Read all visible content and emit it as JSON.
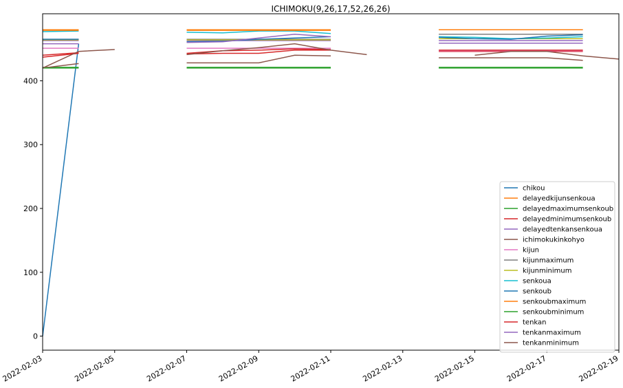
{
  "chart_data": {
    "type": "line",
    "title": "ICHIMOKU(9,26,17,52,26,26)",
    "xlabel": "",
    "ylabel": "",
    "xlim": [
      "2022-02-03",
      "2022-02-19"
    ],
    "ylim": [
      -22,
      505
    ],
    "x_ticks": [
      "2022-02-03",
      "2022-02-05",
      "2022-02-07",
      "2022-02-09",
      "2022-02-11",
      "2022-02-13",
      "2022-02-15",
      "2022-02-17",
      "2022-02-19"
    ],
    "y_ticks": [
      0,
      100,
      200,
      300,
      400
    ],
    "grid": false,
    "legend_position": "lower right",
    "series": [
      {
        "name": "chikou",
        "color": "#1f77b4",
        "points": [
          [
            "2022-02-03",
            0
          ],
          [
            "2022-02-04",
            458
          ]
        ]
      },
      {
        "name": "delayedkijunsenkoua",
        "color": "#ff7f0e",
        "points": [
          [
            "2022-02-03",
            480
          ],
          [
            "2022-02-04",
            480
          ],
          null,
          [
            "2022-02-07",
            480
          ],
          [
            "2022-02-08",
            480
          ],
          [
            "2022-02-09",
            480
          ],
          [
            "2022-02-10",
            480
          ],
          [
            "2022-02-11",
            480
          ],
          null,
          [
            "2022-02-14",
            480
          ],
          [
            "2022-02-15",
            480
          ],
          [
            "2022-02-16",
            480
          ],
          [
            "2022-02-17",
            480
          ],
          [
            "2022-02-18",
            480
          ]
        ]
      },
      {
        "name": "delayedmaximumsenkoub",
        "color": "#2ca02c",
        "points": [
          [
            "2022-02-03",
            421
          ],
          [
            "2022-02-04",
            421
          ],
          null,
          [
            "2022-02-07",
            421
          ],
          [
            "2022-02-08",
            421
          ],
          [
            "2022-02-09",
            421
          ],
          [
            "2022-02-10",
            421
          ],
          [
            "2022-02-11",
            421
          ],
          null,
          [
            "2022-02-14",
            421
          ],
          [
            "2022-02-15",
            421
          ],
          [
            "2022-02-16",
            421
          ],
          [
            "2022-02-17",
            421
          ],
          [
            "2022-02-18",
            421
          ]
        ]
      },
      {
        "name": "delayedminimumsenkoub",
        "color": "#d62728",
        "points": [
          [
            "2022-02-03",
            437
          ],
          [
            "2022-02-04",
            443
          ],
          null,
          [
            "2022-02-07",
            442
          ],
          [
            "2022-02-08",
            443
          ],
          [
            "2022-02-09",
            443
          ],
          [
            "2022-02-10",
            448
          ],
          [
            "2022-02-11",
            448
          ],
          null,
          [
            "2022-02-14",
            446
          ],
          [
            "2022-02-15",
            446
          ],
          [
            "2022-02-16",
            446
          ],
          [
            "2022-02-17",
            446
          ],
          [
            "2022-02-18",
            446
          ]
        ]
      },
      {
        "name": "delayedtenkansenkoua",
        "color": "#9467bd",
        "points": [
          [
            "2022-02-03",
            463
          ],
          [
            "2022-02-04",
            463
          ],
          null,
          [
            "2022-02-07",
            463
          ],
          [
            "2022-02-08",
            463
          ],
          [
            "2022-02-09",
            463
          ],
          [
            "2022-02-10",
            463
          ],
          [
            "2022-02-11",
            463
          ],
          null,
          [
            "2022-02-14",
            463
          ],
          [
            "2022-02-15",
            463
          ],
          [
            "2022-02-16",
            463
          ],
          [
            "2022-02-17",
            463
          ],
          [
            "2022-02-18",
            463
          ]
        ]
      },
      {
        "name": "ichimokukinkohyo",
        "color": "#8c564b",
        "points": [
          [
            "2022-02-03",
            420
          ],
          [
            "2022-02-04",
            427
          ],
          null,
          [
            "2022-02-07",
            428
          ],
          [
            "2022-02-08",
            428
          ],
          [
            "2022-02-09",
            428
          ],
          [
            "2022-02-10",
            440
          ],
          [
            "2022-02-11",
            439
          ],
          null,
          [
            "2022-02-14",
            436
          ],
          [
            "2022-02-15",
            436
          ],
          [
            "2022-02-16",
            436
          ],
          [
            "2022-02-17",
            436
          ],
          [
            "2022-02-18",
            432
          ]
        ]
      },
      {
        "name": "kijun",
        "color": "#e377c2",
        "points": [
          [
            "2022-02-03",
            451
          ],
          [
            "2022-02-04",
            451
          ],
          null,
          [
            "2022-02-07",
            451
          ],
          [
            "2022-02-08",
            451
          ],
          [
            "2022-02-09",
            451
          ],
          [
            "2022-02-10",
            451
          ],
          [
            "2022-02-11",
            451
          ],
          null,
          [
            "2022-02-14",
            447
          ],
          [
            "2022-02-15",
            447
          ],
          [
            "2022-02-16",
            447
          ],
          [
            "2022-02-17",
            447
          ],
          [
            "2022-02-18",
            447
          ]
        ]
      },
      {
        "name": "kijunmaximum",
        "color": "#7f7f7f",
        "points": [
          [
            "2022-02-03",
            465
          ],
          [
            "2022-02-04",
            465
          ],
          null,
          [
            "2022-02-07",
            465
          ],
          [
            "2022-02-08",
            465
          ],
          [
            "2022-02-09",
            465
          ],
          [
            "2022-02-10",
            465
          ],
          [
            "2022-02-11",
            465
          ],
          null,
          [
            "2022-02-14",
            473
          ],
          [
            "2022-02-15",
            473
          ],
          [
            "2022-02-16",
            473
          ],
          [
            "2022-02-17",
            473
          ],
          [
            "2022-02-18",
            473
          ]
        ]
      },
      {
        "name": "kijunminimum",
        "color": "#bcbd22",
        "points": [
          [
            "2022-02-03",
            464
          ],
          [
            "2022-02-04",
            464
          ],
          null,
          [
            "2022-02-07",
            464
          ],
          [
            "2022-02-08",
            464
          ],
          [
            "2022-02-09",
            464
          ],
          [
            "2022-02-10",
            464
          ],
          [
            "2022-02-11",
            464
          ],
          null,
          [
            "2022-02-14",
            466
          ],
          [
            "2022-02-15",
            466
          ],
          [
            "2022-02-16",
            466
          ],
          [
            "2022-02-17",
            466
          ],
          [
            "2022-02-18",
            466
          ]
        ]
      },
      {
        "name": "senkoua",
        "color": "#17becf",
        "points": [
          [
            "2022-02-03",
            477
          ],
          [
            "2022-02-04",
            478
          ],
          null,
          [
            "2022-02-07",
            476
          ],
          [
            "2022-02-08",
            475
          ],
          [
            "2022-02-09",
            478
          ],
          [
            "2022-02-10",
            478
          ],
          [
            "2022-02-11",
            474
          ],
          null,
          [
            "2022-02-14",
            469
          ],
          [
            "2022-02-15",
            468
          ],
          [
            "2022-02-16",
            466
          ],
          [
            "2022-02-17",
            467
          ],
          [
            "2022-02-18",
            469
          ]
        ]
      },
      {
        "name": "senkoub",
        "color": "#1f77b4",
        "points": [
          [
            "2022-02-03",
            465
          ],
          [
            "2022-02-04",
            465
          ],
          null,
          [
            "2022-02-07",
            461
          ],
          [
            "2022-02-08",
            462
          ],
          [
            "2022-02-09",
            465
          ],
          [
            "2022-02-10",
            467
          ],
          [
            "2022-02-11",
            469
          ],
          null,
          [
            "2022-02-14",
            468
          ],
          [
            "2022-02-15",
            466
          ],
          [
            "2022-02-16",
            465
          ],
          [
            "2022-02-17",
            470
          ],
          [
            "2022-02-18",
            472
          ]
        ]
      },
      {
        "name": "senkoubmaximum",
        "color": "#ff7f0e",
        "points": [
          [
            "2022-02-03",
            479
          ],
          [
            "2022-02-04",
            479
          ],
          null,
          [
            "2022-02-07",
            479
          ],
          [
            "2022-02-08",
            479
          ],
          [
            "2022-02-09",
            479
          ],
          [
            "2022-02-10",
            479
          ],
          [
            "2022-02-11",
            479
          ],
          null,
          [
            "2022-02-14",
            480
          ],
          [
            "2022-02-15",
            480
          ],
          [
            "2022-02-16",
            480
          ],
          [
            "2022-02-17",
            480
          ],
          [
            "2022-02-18",
            480
          ]
        ]
      },
      {
        "name": "senkoubminimum",
        "color": "#2ca02c",
        "points": [
          [
            "2022-02-03",
            420
          ],
          [
            "2022-02-04",
            420
          ],
          null,
          [
            "2022-02-07",
            420
          ],
          [
            "2022-02-08",
            420
          ],
          [
            "2022-02-09",
            420
          ],
          [
            "2022-02-10",
            420
          ],
          [
            "2022-02-11",
            420
          ],
          null,
          [
            "2022-02-14",
            420
          ],
          [
            "2022-02-15",
            420
          ],
          [
            "2022-02-16",
            420
          ],
          [
            "2022-02-17",
            420
          ],
          [
            "2022-02-18",
            420
          ]
        ]
      },
      {
        "name": "tenkan",
        "color": "#d62728",
        "points": [
          [
            "2022-02-03",
            440
          ],
          [
            "2022-02-04",
            444
          ],
          null,
          [
            "2022-02-07",
            443
          ],
          [
            "2022-02-08",
            447
          ],
          [
            "2022-02-09",
            448
          ],
          [
            "2022-02-10",
            450
          ],
          [
            "2022-02-11",
            449
          ],
          null,
          [
            "2022-02-14",
            448
          ],
          [
            "2022-02-15",
            448
          ],
          [
            "2022-02-16",
            448
          ],
          [
            "2022-02-17",
            448
          ],
          [
            "2022-02-18",
            448
          ]
        ]
      },
      {
        "name": "tenkanmaximum",
        "color": "#9467bd",
        "points": [
          [
            "2022-02-03",
            458
          ],
          [
            "2022-02-04",
            458
          ],
          null,
          [
            "2022-02-07",
            460
          ],
          [
            "2022-02-08",
            461
          ],
          [
            "2022-02-09",
            467
          ],
          [
            "2022-02-10",
            473
          ],
          [
            "2022-02-11",
            469
          ],
          null,
          [
            "2022-02-14",
            459
          ],
          [
            "2022-02-15",
            459
          ],
          [
            "2022-02-16",
            459
          ],
          [
            "2022-02-17",
            459
          ],
          [
            "2022-02-18",
            459
          ]
        ]
      },
      {
        "name": "tenkanminimum",
        "color": "#8c564b",
        "points": [
          [
            "2022-02-03",
            420
          ],
          [
            "2022-02-04",
            446
          ],
          [
            "2022-02-05",
            449
          ],
          null,
          [
            "2022-02-07",
            441
          ],
          [
            "2022-02-08",
            447
          ],
          [
            "2022-02-09",
            452
          ],
          [
            "2022-02-10",
            458
          ],
          [
            "2022-02-11",
            448
          ],
          [
            "2022-02-12",
            441
          ],
          null,
          [
            "2022-02-15",
            440
          ],
          [
            "2022-02-16",
            446
          ],
          [
            "2022-02-17",
            446
          ],
          [
            "2022-02-18",
            439
          ],
          [
            "2022-02-19",
            434
          ]
        ]
      }
    ]
  }
}
